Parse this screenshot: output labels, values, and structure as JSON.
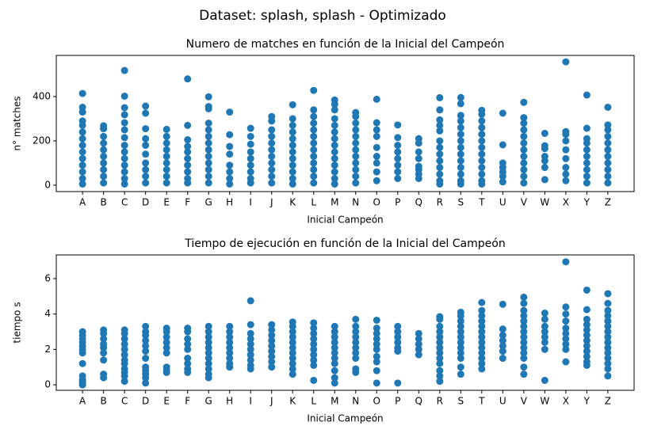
{
  "title": "Dataset: splash, splash - Optimizado",
  "chart_data": [
    {
      "type": "scatter",
      "title": "Numero de matches en función de la Inicial del Campeón",
      "xlabel": "Inicial Campeón",
      "ylabel": "n° matches",
      "color": "#1f77b4",
      "categories": [
        "A",
        "B",
        "C",
        "D",
        "E",
        "F",
        "G",
        "H",
        "I",
        "J",
        "K",
        "L",
        "M",
        "N",
        "O",
        "P",
        "Q",
        "R",
        "S",
        "T",
        "U",
        "V",
        "W",
        "X",
        "Y",
        "Z"
      ],
      "ylim": [
        -29,
        586
      ],
      "yticks": [
        0,
        200,
        400
      ],
      "values": [
        [
          414,
          352,
          330,
          290,
          270,
          240,
          210,
          180,
          150,
          120,
          90,
          60,
          30,
          5
        ],
        [
          268,
          255,
          220,
          190,
          160,
          130,
          100,
          70,
          40,
          10
        ],
        [
          518,
          402,
          350,
          318,
          282,
          250,
          215,
          180,
          150,
          120,
          90,
          60,
          30,
          5
        ],
        [
          357,
          325,
          255,
          210,
          180,
          140,
          100,
          70,
          40,
          10
        ],
        [
          252,
          220,
          190,
          160,
          130,
          100,
          70,
          40,
          10
        ],
        [
          480,
          270,
          205,
          175,
          150,
          120,
          90,
          60,
          30,
          10
        ],
        [
          399,
          355,
          345,
          280,
          250,
          220,
          190,
          160,
          130,
          100,
          70,
          40,
          10
        ],
        [
          330,
          228,
          175,
          140,
          90,
          60,
          30,
          5
        ],
        [
          257,
          220,
          185,
          150,
          120,
          90,
          60,
          30,
          10
        ],
        [
          310,
          290,
          250,
          220,
          190,
          160,
          130,
          100,
          70,
          40,
          10
        ],
        [
          363,
          300,
          270,
          240,
          210,
          180,
          150,
          120,
          90,
          60,
          30,
          5
        ],
        [
          428,
          340,
          310,
          280,
          250,
          220,
          190,
          160,
          130,
          100,
          70,
          40,
          10
        ],
        [
          385,
          365,
          340,
          300,
          270,
          240,
          210,
          180,
          150,
          120,
          90,
          60,
          30,
          5
        ],
        [
          328,
          310,
          280,
          250,
          220,
          190,
          160,
          130,
          100,
          70,
          40,
          10
        ],
        [
          388,
          282,
          250,
          220,
          170,
          130,
          100,
          60,
          20
        ],
        [
          272,
          215,
          180,
          150,
          120,
          90,
          60,
          30
        ],
        [
          210,
          190,
          150,
          120,
          85,
          70,
          50,
          30
        ],
        [
          395,
          340,
          295,
          270,
          245,
          200,
          170,
          140,
          110,
          80,
          50,
          20,
          5
        ],
        [
          396,
          368,
          315,
          290,
          260,
          230,
          200,
          170,
          140,
          110,
          80,
          50,
          20,
          5
        ],
        [
          338,
          320,
          290,
          260,
          230,
          200,
          170,
          140,
          110,
          80,
          50,
          20,
          5
        ],
        [
          325,
          182,
          100,
          80,
          60,
          40,
          15
        ],
        [
          374,
          305,
          280,
          250,
          220,
          190,
          160,
          130,
          100,
          70,
          40,
          10
        ],
        [
          234,
          178,
          165,
          130,
          110,
          80,
          25
        ],
        [
          557,
          242,
          230,
          200,
          160,
          120,
          80,
          50,
          20
        ],
        [
          407,
          257,
          210,
          190,
          160,
          130,
          100,
          70,
          40,
          10
        ],
        [
          352,
          272,
          250,
          220,
          190,
          160,
          130,
          100,
          70,
          40,
          10
        ]
      ]
    },
    {
      "type": "scatter",
      "title": "Tiempo de ejecución en función de la Inicial del Campeón",
      "xlabel": "Inicial Campeón",
      "ylabel": "tiempo s",
      "color": "#1f77b4",
      "categories": [
        "A",
        "B",
        "C",
        "D",
        "E",
        "F",
        "G",
        "H",
        "I",
        "J",
        "K",
        "L",
        "M",
        "N",
        "O",
        "P",
        "Q",
        "R",
        "S",
        "T",
        "U",
        "V",
        "W",
        "X",
        "Y",
        "Z"
      ],
      "ylim": [
        -0.31,
        7.34
      ],
      "yticks": [
        0,
        2,
        4,
        6
      ],
      "values": [
        [
          3.0,
          2.8,
          2.6,
          2.4,
          2.2,
          2.0,
          1.8,
          1.2,
          0.5,
          0.3,
          0.2,
          0.1,
          0.0
        ],
        [
          3.1,
          2.9,
          2.6,
          2.3,
          2.1,
          1.8,
          1.4,
          0.6,
          0.4
        ],
        [
          3.1,
          2.9,
          2.6,
          2.3,
          2.0,
          1.7,
          1.4,
          1.2,
          0.9,
          0.7,
          0.5,
          0.2
        ],
        [
          3.3,
          3.0,
          2.8,
          2.5,
          2.2,
          1.9,
          1.5,
          1.0,
          0.8,
          0.6,
          0.4,
          0.1
        ],
        [
          3.2,
          3.0,
          2.7,
          2.4,
          2.1,
          1.8,
          1.0,
          0.8,
          0.7
        ],
        [
          3.2,
          3.0,
          2.6,
          2.3,
          2.0,
          1.5,
          1.2,
          0.9,
          0.7
        ],
        [
          3.3,
          3.0,
          2.7,
          2.4,
          2.1,
          1.8,
          1.5,
          1.2,
          0.9,
          0.6,
          0.4
        ],
        [
          3.3,
          3.0,
          2.7,
          2.4,
          2.1,
          1.8,
          1.5,
          1.2,
          1.0
        ],
        [
          4.75,
          3.4,
          2.9,
          2.6,
          2.3,
          2.0,
          1.7,
          1.4,
          1.1,
          0.9
        ],
        [
          3.4,
          3.1,
          2.8,
          2.5,
          2.2,
          1.9,
          1.6,
          1.3,
          1.0
        ],
        [
          3.55,
          3.3,
          3.0,
          2.7,
          2.4,
          2.1,
          1.8,
          1.5,
          1.2,
          0.9,
          0.6
        ],
        [
          3.5,
          3.2,
          2.9,
          2.6,
          2.3,
          2.0,
          1.7,
          1.4,
          1.1,
          0.25
        ],
        [
          3.3,
          3.0,
          2.7,
          2.4,
          2.1,
          1.8,
          1.5,
          1.2,
          0.8,
          0.4,
          0.1
        ],
        [
          3.7,
          3.3,
          3.0,
          2.7,
          2.4,
          2.1,
          1.8,
          1.5,
          0.9,
          0.7
        ],
        [
          3.65,
          3.2,
          2.9,
          2.6,
          2.3,
          2.0,
          1.6,
          1.3,
          0.8,
          0.1
        ],
        [
          3.3,
          3.0,
          2.7,
          2.4,
          2.1,
          1.9,
          0.1
        ],
        [
          2.9,
          2.6,
          2.3,
          2.0,
          1.7
        ],
        [
          3.85,
          3.7,
          3.3,
          3.0,
          2.7,
          2.4,
          2.1,
          1.8,
          1.5,
          1.2,
          0.8,
          0.5,
          0.2
        ],
        [
          4.1,
          3.9,
          3.6,
          3.3,
          3.0,
          2.7,
          2.4,
          2.1,
          1.8,
          1.5,
          1.0,
          0.6
        ],
        [
          4.65,
          4.2,
          3.9,
          3.6,
          3.3,
          3.0,
          2.7,
          2.4,
          2.1,
          1.8,
          1.5,
          1.2,
          0.9
        ],
        [
          4.55,
          3.15,
          2.8,
          2.5,
          2.2,
          1.9,
          1.5
        ],
        [
          4.95,
          4.6,
          4.2,
          3.9,
          3.6,
          3.3,
          3.0,
          2.7,
          2.4,
          2.1,
          1.8,
          1.5,
          1.0,
          0.6
        ],
        [
          4.05,
          3.7,
          3.3,
          3.0,
          2.7,
          2.4,
          2.0,
          0.25
        ],
        [
          6.95,
          4.4,
          4.0,
          3.6,
          3.2,
          2.9,
          2.6,
          2.3,
          2.0,
          1.3
        ],
        [
          5.35,
          4.25,
          3.7,
          3.4,
          3.1,
          2.8,
          2.5,
          2.2,
          1.9,
          1.6,
          1.3,
          1.1
        ],
        [
          5.15,
          4.6,
          4.2,
          3.9,
          3.6,
          3.3,
          3.0,
          2.7,
          2.4,
          2.1,
          1.8,
          1.5,
          1.2,
          0.9,
          0.5
        ]
      ]
    }
  ]
}
